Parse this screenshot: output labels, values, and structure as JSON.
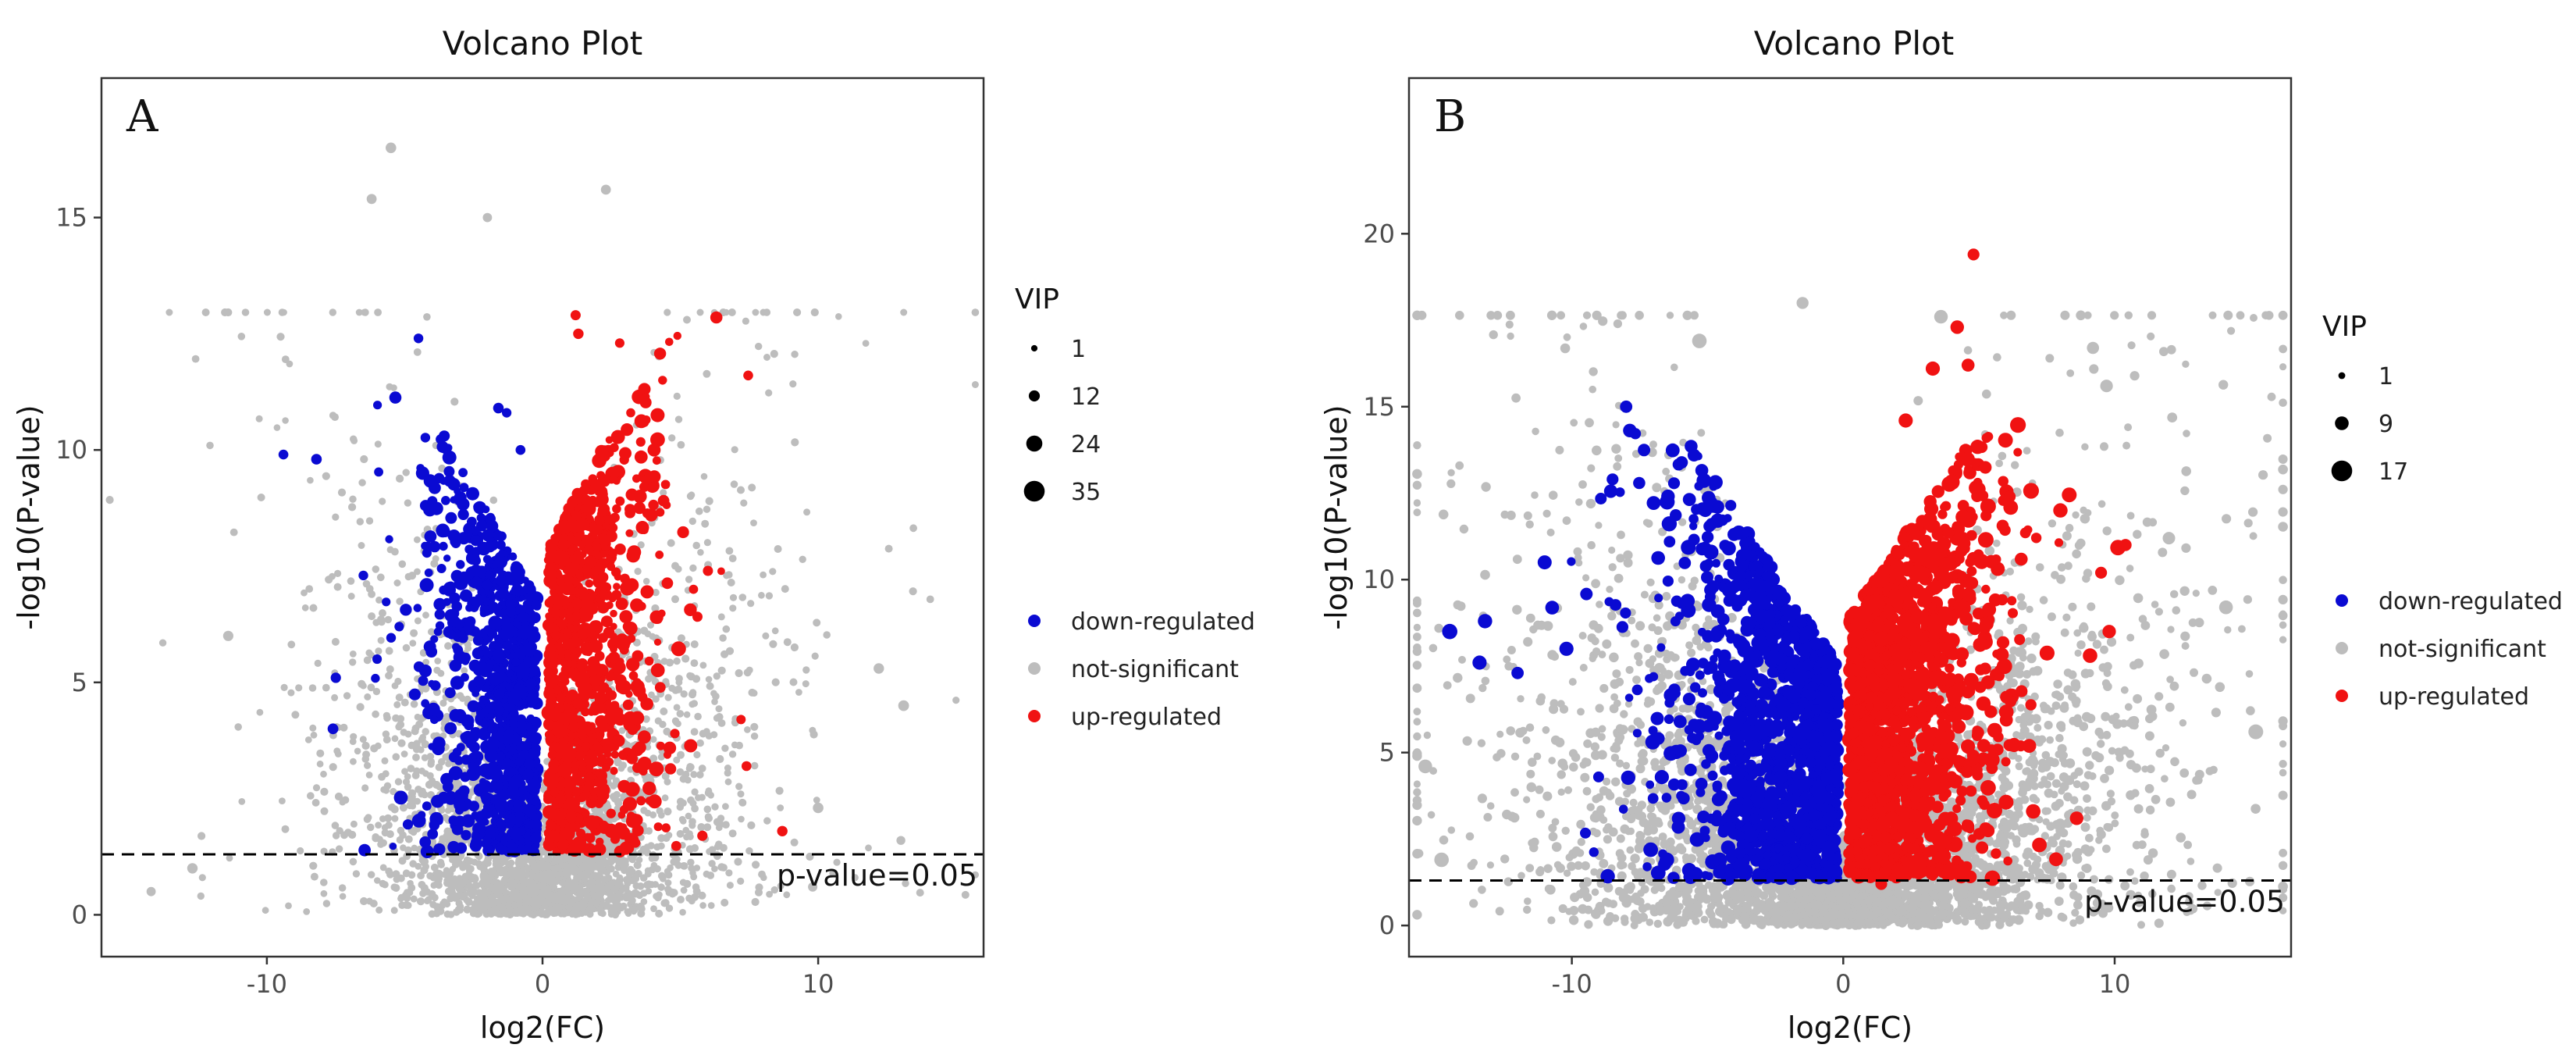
{
  "colors": {
    "down": "#0a0ad2",
    "ns": "#bdbdbd",
    "up": "#f01212",
    "axis": "#333333",
    "threshold": "#000000"
  },
  "chart_data": [
    {
      "type": "scatter",
      "panel_label": "A",
      "title": "Volcano Plot",
      "xlabel": "log2(FC)",
      "ylabel": "-log10(P-value)",
      "xlim": [
        -16,
        16
      ],
      "ylim": [
        -0.9,
        18
      ],
      "xticks": [
        "-10",
        "0",
        "10"
      ],
      "xtick_values": [
        -10,
        0,
        10
      ],
      "yticks": [
        "0",
        "5",
        "10",
        "15"
      ],
      "ytick_values": [
        0,
        5,
        10,
        15
      ],
      "threshold": {
        "y": 1.3,
        "label": "p-value=0.05"
      },
      "size_legend": {
        "title": "VIP",
        "labels": [
          "1",
          "12",
          "24",
          "35"
        ],
        "values": [
          1,
          12,
          24,
          35
        ]
      },
      "color_legend": [
        {
          "label": "down-regulated",
          "key": "down"
        },
        {
          "label": "not-significant",
          "key": "ns"
        },
        {
          "label": "up-regulated",
          "key": "up"
        }
      ],
      "sim": {
        "seed": 11,
        "nsN": 2600,
        "downN": 820,
        "upN": 880,
        "sigX": 3.6,
        "ymaxSig": 13,
        "vipMax": 35
      },
      "series": [
        {
          "name": "down-regulated",
          "points": [
            [
              -9.4,
              9.9
            ],
            [
              -8.2,
              9.8
            ],
            [
              -7.5,
              5.1
            ],
            [
              -7.6,
              4.0
            ],
            [
              -6.5,
              7.3
            ],
            [
              -4.5,
              12.4
            ],
            [
              -1.6,
              10.9
            ],
            [
              -1.3,
              10.8
            ],
            [
              -0.8,
              10.0
            ],
            [
              -4.0,
              8.9
            ],
            [
              -5.2,
              6.2
            ],
            [
              -3.1,
              3.5
            ],
            [
              -6.0,
              5.5
            ]
          ]
        },
        {
          "name": "up-regulated",
          "points": [
            [
              1.2,
              12.9
            ],
            [
              1.3,
              12.5
            ],
            [
              2.8,
              12.3
            ],
            [
              3.2,
              10.8
            ],
            [
              6.0,
              7.4
            ],
            [
              7.2,
              4.2
            ],
            [
              7.4,
              3.2
            ],
            [
              5.8,
              1.7
            ],
            [
              8.7,
              1.8
            ],
            [
              4.8,
              3.9
            ],
            [
              3.1,
              6.2
            ],
            [
              2.5,
              8.5
            ]
          ]
        },
        {
          "name": "not-significant",
          "points": [
            [
              -6.2,
              15.4
            ],
            [
              -5.5,
              16.5
            ],
            [
              2.3,
              15.6
            ],
            [
              -14.2,
              0.5
            ],
            [
              -11.4,
              6.0
            ],
            [
              12.2,
              5.3
            ],
            [
              13.1,
              4.5
            ],
            [
              13.0,
              1.6
            ],
            [
              10.0,
              2.3
            ],
            [
              -12.7,
              1.0
            ],
            [
              9.8,
              0.6
            ],
            [
              -2.0,
              15.0
            ]
          ]
        }
      ]
    },
    {
      "type": "scatter",
      "panel_label": "B",
      "title": "Volcano Plot",
      "xlabel": "log2(FC)",
      "ylabel": "-log10(P-value)",
      "xlim": [
        -16,
        16.5
      ],
      "ylim": [
        -0.9,
        24.5
      ],
      "xticks": [
        "-10",
        "0",
        "10"
      ],
      "xtick_values": [
        -10,
        0,
        10
      ],
      "yticks": [
        "0",
        "5",
        "10",
        "15",
        "20"
      ],
      "ytick_values": [
        0,
        5,
        10,
        15,
        20
      ],
      "threshold": {
        "y": 1.3,
        "label": "p-value=0.05"
      },
      "size_legend": {
        "title": "VIP",
        "labels": [
          "1",
          "9",
          "17"
        ],
        "values": [
          1,
          9,
          17
        ]
      },
      "color_legend": [
        {
          "label": "down-regulated",
          "key": "down"
        },
        {
          "label": "not-significant",
          "key": "ns"
        },
        {
          "label": "up-regulated",
          "key": "up"
        }
      ],
      "sim": {
        "seed": 23,
        "nsN": 4200,
        "downN": 1300,
        "upN": 1500,
        "sigX": 5.2,
        "ymaxSig": 14.5,
        "vipMax": 17
      },
      "series": [
        {
          "name": "down-regulated",
          "points": [
            [
              -8.0,
              15.0
            ],
            [
              -14.5,
              8.5
            ],
            [
              -13.2,
              8.8
            ],
            [
              -12.0,
              7.3
            ],
            [
              -13.4,
              7.6
            ],
            [
              -10.2,
              8.0
            ],
            [
              -5.5,
              13.6
            ],
            [
              -8.5,
              12.9
            ],
            [
              -6.5,
              1.9
            ],
            [
              -1.5,
              1.6
            ],
            [
              -3.8,
              2.1
            ],
            [
              -11.0,
              10.5
            ]
          ]
        },
        {
          "name": "up-regulated",
          "points": [
            [
              4.8,
              19.4
            ],
            [
              4.2,
              17.3
            ],
            [
              3.3,
              16.1
            ],
            [
              4.6,
              16.2
            ],
            [
              2.3,
              14.6
            ],
            [
              8.0,
              12.0
            ],
            [
              10.4,
              11.0
            ],
            [
              9.5,
              10.2
            ],
            [
              9.8,
              8.5
            ],
            [
              8.6,
              3.1
            ],
            [
              7.0,
              3.3
            ],
            [
              1.0,
              1.4
            ],
            [
              1.4,
              1.2
            ]
          ]
        },
        {
          "name": "not-significant",
          "points": [
            [
              -5.3,
              16.9
            ],
            [
              3.6,
              17.6
            ],
            [
              9.2,
              16.7
            ],
            [
              9.7,
              15.6
            ],
            [
              15.2,
              5.6
            ],
            [
              -14.8,
              1.9
            ],
            [
              14.1,
              9.2
            ],
            [
              -1.5,
              18.0
            ],
            [
              12.0,
              11.2
            ],
            [
              -15.4,
              4.6
            ]
          ]
        }
      ]
    }
  ]
}
